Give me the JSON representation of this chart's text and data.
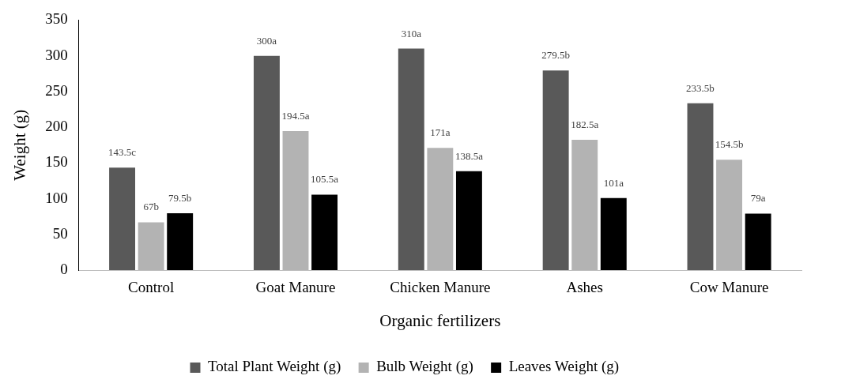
{
  "chart_data": {
    "type": "bar",
    "xlabel": "Organic fertilizers",
    "ylabel": "Weight (g)",
    "categories": [
      "Control",
      "Goat Manure",
      "Chicken Manure",
      "Ashes",
      "Cow Manure"
    ],
    "series": [
      {
        "name": "Total Plant Weight (g)",
        "color": "#595959",
        "values": [
          143.5,
          300,
          310,
          279.5,
          233.5
        ],
        "value_labels": [
          "143.5c",
          "300a",
          "310a",
          "279.5b",
          "233.5b"
        ]
      },
      {
        "name": "Bulb Weight (g)",
        "color": "#b3b3b3",
        "values": [
          67,
          194.5,
          171,
          182.5,
          154.5
        ],
        "value_labels": [
          "67b",
          "194.5a",
          "171a",
          "182.5a",
          "154.5b"
        ]
      },
      {
        "name": "Leaves Weight (g)",
        "color": "#000000",
        "values": [
          79.5,
          105.5,
          138.5,
          101,
          79
        ],
        "value_labels": [
          "79.5b",
          "105.5a",
          "138.5a",
          "101a",
          "79a"
        ]
      }
    ],
    "ylim": [
      0,
      350
    ],
    "yticks": [
      0,
      50,
      100,
      150,
      200,
      250,
      300,
      350
    ],
    "grid": false,
    "legend": "bottom"
  }
}
